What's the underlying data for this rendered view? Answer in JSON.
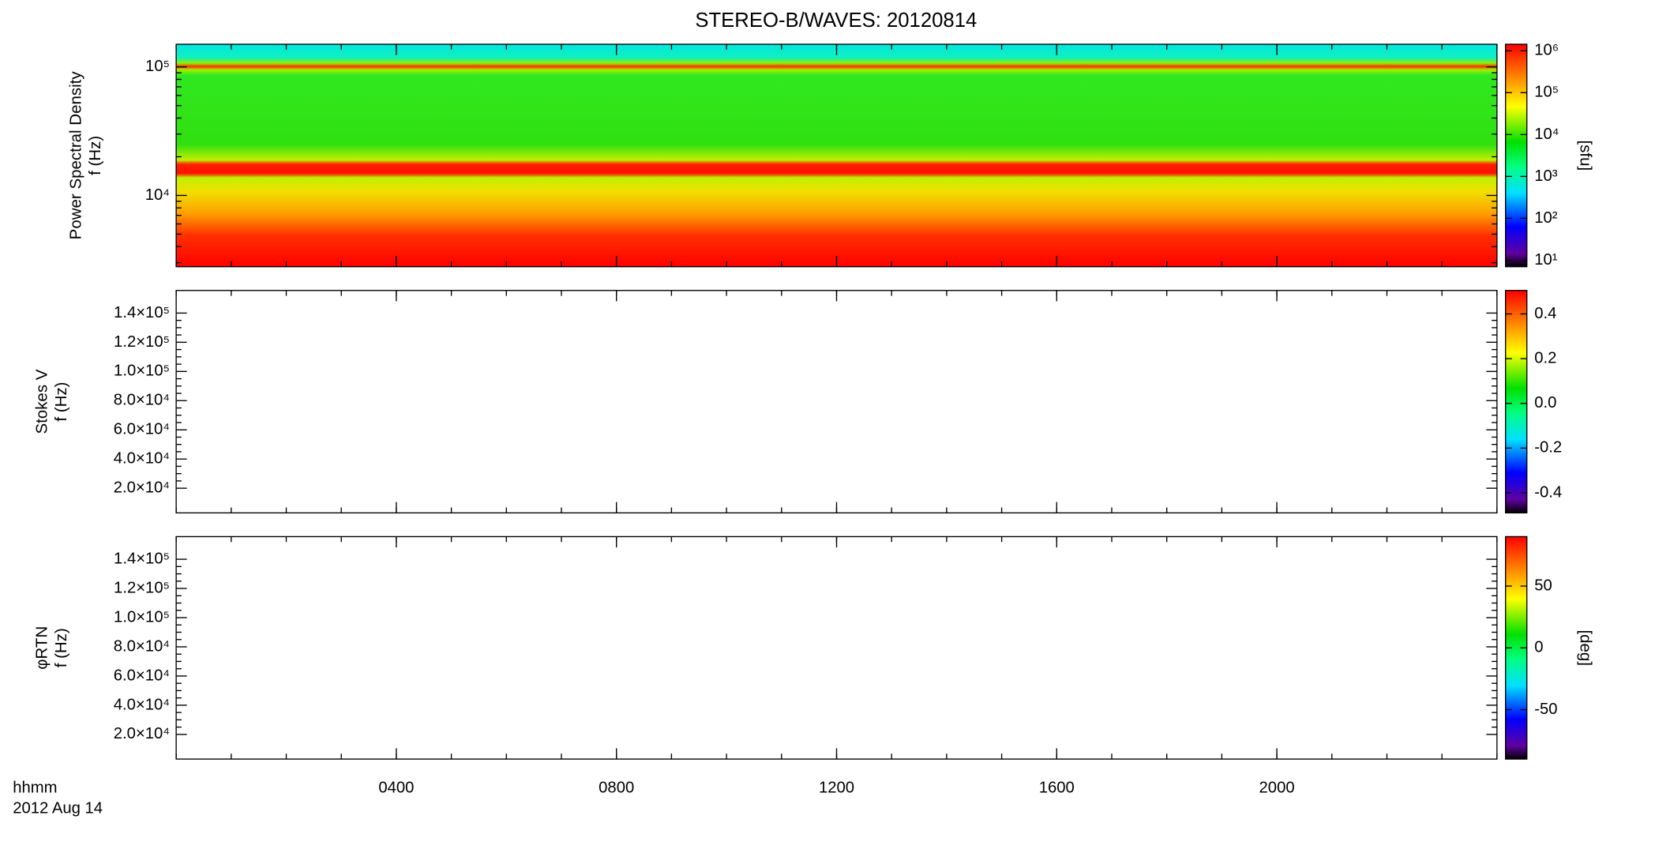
{
  "chart_data": [
    {
      "type": "spectrogram",
      "title": "STEREO-B/WAVES: 20120814",
      "ylabel_lines": [
        "Power Spectral Density",
        "f (Hz)"
      ],
      "ylog": true,
      "ylim": [
        2790,
        150000
      ],
      "yticks": [
        {
          "value": 10000,
          "label": "10⁴"
        },
        {
          "value": 100000,
          "label": "10⁵"
        }
      ],
      "xlim": [
        0,
        24
      ],
      "xticks": [
        {
          "value": 4,
          "label": "0400"
        },
        {
          "value": 8,
          "label": "0800"
        },
        {
          "value": 12,
          "label": "1200"
        },
        {
          "value": 16,
          "label": "1600"
        },
        {
          "value": 20,
          "label": "2000"
        }
      ],
      "colorbar": {
        "log": true,
        "lim": [
          7,
          1430000
        ],
        "label": "[sfu]",
        "ticks": [
          {
            "value": 10,
            "label": "10¹"
          },
          {
            "value": 100,
            "label": "10²"
          },
          {
            "value": 1000,
            "label": "10³"
          },
          {
            "value": 10000,
            "label": "10⁴"
          },
          {
            "value": 100000,
            "label": "10⁵"
          },
          {
            "value": 1000000,
            "label": "10⁶"
          }
        ]
      }
    },
    {
      "type": "spectrogram",
      "ylabel_lines": [
        "Stokes V",
        "f (Hz)"
      ],
      "ylog": false,
      "ylim": [
        3100,
        155500
      ],
      "yticks": [
        {
          "value": 20000,
          "label": "2.0×10⁴"
        },
        {
          "value": 40000,
          "label": "4.0×10⁴"
        },
        {
          "value": 60000,
          "label": "6.0×10⁴"
        },
        {
          "value": 80000,
          "label": "8.0×10⁴"
        },
        {
          "value": 100000,
          "label": "1.0×10⁵"
        },
        {
          "value": 120000,
          "label": "1.2×10⁵"
        },
        {
          "value": 140000,
          "label": "1.4×10⁵"
        }
      ],
      "xlim": [
        0,
        24
      ],
      "xticks": [
        {
          "value": 4,
          "label": "0400"
        },
        {
          "value": 8,
          "label": "0800"
        },
        {
          "value": 12,
          "label": "1200"
        },
        {
          "value": 16,
          "label": "1600"
        },
        {
          "value": 20,
          "label": "2000"
        }
      ],
      "colorbar": {
        "log": false,
        "lim": [
          -0.49,
          0.505
        ],
        "ticks": [
          -0.4,
          -0.2,
          {
            "value": 0,
            "label": "0.0"
          },
          0.2,
          0.4
        ]
      }
    },
    {
      "type": "spectrogram",
      "ylabel_lines": [
        "φRTN",
        "f (Hz)"
      ],
      "ylog": false,
      "ylim": [
        3100,
        155500
      ],
      "yticks": [
        {
          "value": 20000,
          "label": "2.0×10⁴"
        },
        {
          "value": 40000,
          "label": "4.0×10⁴"
        },
        {
          "value": 60000,
          "label": "6.0×10⁴"
        },
        {
          "value": 80000,
          "label": "8.0×10⁴"
        },
        {
          "value": 100000,
          "label": "1.0×10⁵"
        },
        {
          "value": 120000,
          "label": "1.2×10⁵"
        },
        {
          "value": 140000,
          "label": "1.4×10⁵"
        }
      ],
      "xlim": [
        0,
        24
      ],
      "xticks": [
        {
          "value": 4,
          "label": "0400"
        },
        {
          "value": 8,
          "label": "0800"
        },
        {
          "value": 12,
          "label": "1200"
        },
        {
          "value": 16,
          "label": "1600"
        },
        {
          "value": 20,
          "label": "2000"
        }
      ],
      "xlabel": "hhmm",
      "date": "2012 Aug 14",
      "colorbar": {
        "log": false,
        "lim": [
          -90,
          90
        ],
        "label": "[deg]",
        "ticks": [
          -50,
          0,
          50
        ]
      }
    }
  ]
}
